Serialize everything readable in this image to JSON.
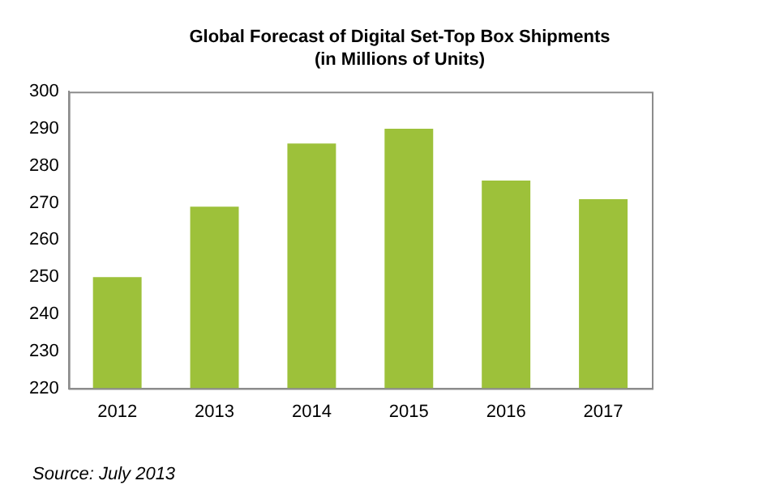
{
  "chart_data": {
    "type": "bar",
    "title": "Global Forecast of Digital Set-Top Box Shipments\n(in Millions of Units)",
    "categories": [
      "2012",
      "2013",
      "2014",
      "2015",
      "2016",
      "2017"
    ],
    "values": [
      250,
      269,
      286,
      290,
      276,
      271
    ],
    "color": "#9dc13a",
    "ylim": [
      220,
      300
    ],
    "yticks": [
      220,
      230,
      240,
      250,
      260,
      270,
      280,
      290,
      300
    ],
    "grid": false,
    "legend": false,
    "annotations": [
      "Source: July 2013"
    ]
  }
}
